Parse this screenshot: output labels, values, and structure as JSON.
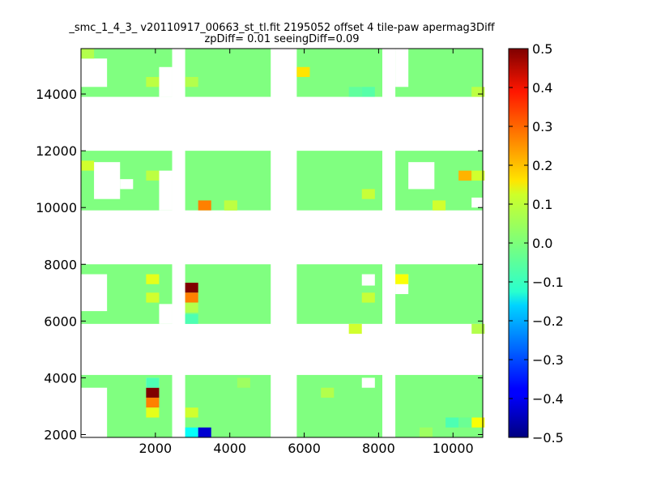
{
  "chart_data": {
    "type": "heatmap",
    "title_line1": "_smc_1_4_3_ v20110917_00663_st_tl.fit 2195052 offset 4 tile-paw apermag3Diff",
    "title_line2": "zpDiff= 0.01 seeingDiff=0.09",
    "xlabel": "",
    "ylabel": "",
    "xlim": [
      0,
      10800
    ],
    "ylim": [
      1900,
      15600
    ],
    "xticks": [
      2000,
      4000,
      6000,
      8000,
      10000
    ],
    "yticks": [
      2000,
      4000,
      6000,
      8000,
      10000,
      12000,
      14000
    ],
    "colorbar": {
      "colormap": "jet",
      "vmin": -0.5,
      "vmax": 0.5,
      "ticks": [
        0.5,
        0.4,
        0.3,
        0.2,
        0.1,
        0.0,
        -0.1,
        -0.2,
        -0.3,
        -0.4,
        -0.5
      ],
      "tick_labels": [
        "0.5",
        "0.4",
        "0.3",
        "0.2",
        "0.1",
        "0.0",
        "−0.1",
        "−0.2",
        "−0.3",
        "−0.4",
        "−0.5"
      ]
    },
    "grid": false,
    "cell_size": 350,
    "column_groups_x": [
      [
        0,
        2450
      ],
      [
        2800,
        5100
      ],
      [
        5800,
        8100
      ],
      [
        8450,
        10800
      ]
    ],
    "row_bands_y": [
      [
        1900,
        4100
      ],
      [
        5900,
        8000
      ],
      [
        9900,
        12000
      ],
      [
        13900,
        15600
      ]
    ],
    "background_value": 0.0,
    "missing_cells": [
      {
        "x": 0,
        "y": 1900,
        "w": 700,
        "h": 1750
      },
      {
        "x": 1750,
        "y": 3650,
        "w": 350,
        "h": 350
      },
      {
        "x": 7550,
        "y": 3650,
        "w": 350,
        "h": 350
      },
      {
        "x": 0,
        "y": 6350,
        "w": 700,
        "h": 1300
      },
      {
        "x": 0,
        "y": 5900,
        "w": 0,
        "h": 0
      },
      {
        "x": 2100,
        "y": 5900,
        "w": 350,
        "h": 700
      },
      {
        "x": 8450,
        "y": 6950,
        "w": 350,
        "h": 700
      },
      {
        "x": 7550,
        "y": 7250,
        "w": 350,
        "h": 400
      },
      {
        "x": 0,
        "y": 9900,
        "w": 350,
        "h": 0
      },
      {
        "x": 350,
        "y": 10300,
        "w": 700,
        "h": 1300
      },
      {
        "x": 1050,
        "y": 10650,
        "w": 350,
        "h": 350
      },
      {
        "x": 2100,
        "y": 9900,
        "w": 350,
        "h": 1400
      },
      {
        "x": 8800,
        "y": 10650,
        "w": 700,
        "h": 950
      },
      {
        "x": 10500,
        "y": 10000,
        "w": 350,
        "h": 350
      },
      {
        "x": 0,
        "y": 14250,
        "w": 700,
        "h": 1000
      },
      {
        "x": 700,
        "y": 15250,
        "w": 0,
        "h": 0
      },
      {
        "x": 2100,
        "y": 13900,
        "w": 350,
        "h": 1050
      },
      {
        "x": 8450,
        "y": 14250,
        "w": 350,
        "h": 1350
      },
      {
        "x": 8800,
        "y": 14950,
        "w": 0,
        "h": 0
      }
    ],
    "cells": [
      {
        "x": 1750,
        "y": 3300,
        "v": 0.5
      },
      {
        "x": 1750,
        "y": 2950,
        "v": 0.25
      },
      {
        "x": 1750,
        "y": 2600,
        "v": 0.1
      },
      {
        "x": 1750,
        "y": 3650,
        "v": -0.05
      },
      {
        "x": 2800,
        "y": 1900,
        "v": -0.12
      },
      {
        "x": 3150,
        "y": 1900,
        "v": -0.42
      },
      {
        "x": 2800,
        "y": 2600,
        "v": 0.08
      },
      {
        "x": 2800,
        "y": 7000,
        "v": 0.5
      },
      {
        "x": 2800,
        "y": 6650,
        "v": 0.25
      },
      {
        "x": 2800,
        "y": 6300,
        "v": 0.05
      },
      {
        "x": 2800,
        "y": 5900,
        "v": -0.05
      },
      {
        "x": 1750,
        "y": 7300,
        "v": 0.1
      },
      {
        "x": 1750,
        "y": 6650,
        "v": 0.08
      },
      {
        "x": 8450,
        "y": 7300,
        "v": 0.12
      },
      {
        "x": 7550,
        "y": 6650,
        "v": 0.07
      },
      {
        "x": 7200,
        "y": 5550,
        "v": 0.08
      },
      {
        "x": 10500,
        "y": 5550,
        "v": 0.05
      },
      {
        "x": 10500,
        "y": 2250,
        "v": 0.12
      },
      {
        "x": 10150,
        "y": 2250,
        "v": -0.02
      },
      {
        "x": 3150,
        "y": 9900,
        "v": 0.25
      },
      {
        "x": 3850,
        "y": 9900,
        "v": 0.06
      },
      {
        "x": 9450,
        "y": 9900,
        "v": 0.08
      },
      {
        "x": 10150,
        "y": 10950,
        "v": 0.2
      },
      {
        "x": 10500,
        "y": 10950,
        "v": 0.08
      },
      {
        "x": 7550,
        "y": 10300,
        "v": 0.07
      },
      {
        "x": 1750,
        "y": 10950,
        "v": 0.06
      },
      {
        "x": 0,
        "y": 11300,
        "v": 0.08
      },
      {
        "x": 5800,
        "y": 14600,
        "v": 0.15
      },
      {
        "x": 10500,
        "y": 13900,
        "v": 0.06
      },
      {
        "x": 0,
        "y": 15250,
        "v": 0.05
      },
      {
        "x": 1750,
        "y": 14250,
        "v": 0.06
      },
      {
        "x": 2800,
        "y": 14250,
        "v": 0.05
      },
      {
        "x": 7200,
        "y": 13900,
        "v": -0.03
      },
      {
        "x": 7550,
        "y": 13900,
        "v": -0.04
      },
      {
        "x": 6450,
        "y": 3300,
        "v": 0.05
      },
      {
        "x": 4200,
        "y": 3650,
        "v": 0.03
      },
      {
        "x": 9100,
        "y": 1900,
        "v": 0.03
      },
      {
        "x": 9800,
        "y": 2250,
        "v": -0.05
      },
      {
        "x": 3850,
        "y": 9900,
        "v": 0.06
      }
    ]
  }
}
